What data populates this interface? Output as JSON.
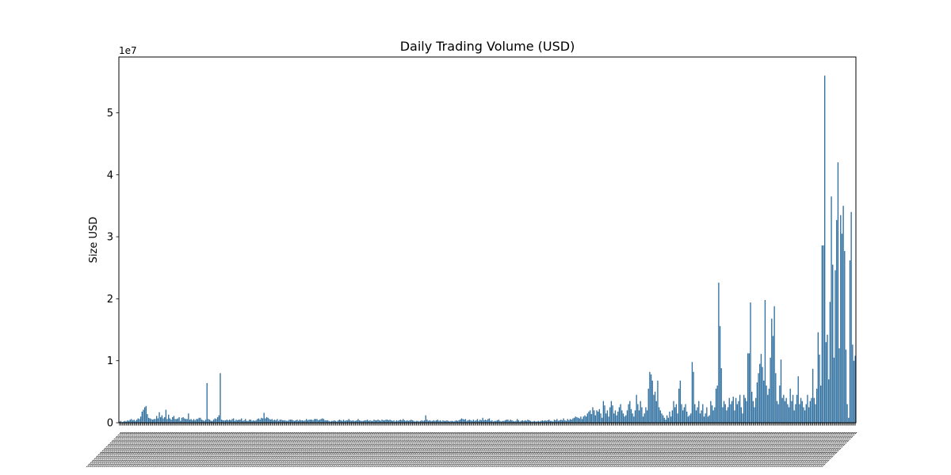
{
  "chart_data": {
    "type": "bar",
    "title": "Daily Trading Volume (USD)",
    "xlabel": "",
    "ylabel": "Size USD",
    "offset_label": "1e7",
    "ylim": [
      0,
      5.9
    ],
    "yticks": [
      0,
      1,
      2,
      3,
      4,
      5
    ],
    "ytick_labels": [
      "0",
      "1",
      "2",
      "3",
      "4",
      "5"
    ],
    "bar_color": "#2f6f9f",
    "grid": false,
    "values_unit": "1e7 USD",
    "values": [
      0.02,
      0.03,
      0.01,
      0.02,
      0.03,
      0.02,
      0.04,
      0.03,
      0.05,
      0.06,
      0.04,
      0.05,
      0.03,
      0.05,
      0.07,
      0.06,
      0.1,
      0.18,
      0.21,
      0.25,
      0.27,
      0.14,
      0.08,
      0.07,
      0.06,
      0.05,
      0.06,
      0.06,
      0.11,
      0.07,
      0.17,
      0.09,
      0.12,
      0.07,
      0.09,
      0.21,
      0.06,
      0.13,
      0.07,
      0.05,
      0.09,
      0.11,
      0.06,
      0.06,
      0.07,
      0.09,
      0.03,
      0.08,
      0.09,
      0.07,
      0.06,
      0.06,
      0.15,
      0.05,
      0.06,
      0.04,
      0.06,
      0.04,
      0.06,
      0.06,
      0.08,
      0.08,
      0.05,
      0.04,
      0.03,
      0.05,
      0.64,
      0.06,
      0.05,
      0.03,
      0.03,
      0.05,
      0.07,
      0.06,
      0.09,
      0.12,
      0.8,
      0.05,
      0.04,
      0.04,
      0.04,
      0.05,
      0.04,
      0.05,
      0.04,
      0.06,
      0.07,
      0.03,
      0.05,
      0.04,
      0.05,
      0.05,
      0.07,
      0.03,
      0.04,
      0.06,
      0.03,
      0.03,
      0.05,
      0.05,
      0.03,
      0.04,
      0.03,
      0.04,
      0.06,
      0.07,
      0.05,
      0.08,
      0.07,
      0.16,
      0.07,
      0.09,
      0.08,
      0.06,
      0.05,
      0.06,
      0.04,
      0.05,
      0.04,
      0.06,
      0.03,
      0.05,
      0.05,
      0.04,
      0.04,
      0.04,
      0.03,
      0.03,
      0.05,
      0.05,
      0.05,
      0.04,
      0.03,
      0.04,
      0.05,
      0.03,
      0.05,
      0.04,
      0.04,
      0.03,
      0.04,
      0.06,
      0.04,
      0.05,
      0.05,
      0.05,
      0.04,
      0.06,
      0.06,
      0.06,
      0.04,
      0.05,
      0.06,
      0.07,
      0.06,
      0.04,
      0.04,
      0.04,
      0.03,
      0.02,
      0.03,
      0.03,
      0.04,
      0.03,
      0.02,
      0.04,
      0.05,
      0.04,
      0.03,
      0.05,
      0.03,
      0.04,
      0.04,
      0.06,
      0.04,
      0.03,
      0.04,
      0.03,
      0.03,
      0.04,
      0.06,
      0.04,
      0.03,
      0.03,
      0.03,
      0.04,
      0.04,
      0.05,
      0.03,
      0.04,
      0.03,
      0.03,
      0.05,
      0.04,
      0.04,
      0.05,
      0.04,
      0.03,
      0.05,
      0.04,
      0.04,
      0.05,
      0.05,
      0.04,
      0.05,
      0.04,
      0.03,
      0.04,
      0.02,
      0.04,
      0.03,
      0.04,
      0.05,
      0.04,
      0.06,
      0.04,
      0.03,
      0.04,
      0.03,
      0.04,
      0.05,
      0.04,
      0.03,
      0.02,
      0.03,
      0.03,
      0.02,
      0.03,
      0.04,
      0.03,
      0.04,
      0.12,
      0.05,
      0.03,
      0.04,
      0.03,
      0.03,
      0.04,
      0.03,
      0.04,
      0.05,
      0.03,
      0.04,
      0.02,
      0.04,
      0.03,
      0.03,
      0.04,
      0.03,
      0.02,
      0.03,
      0.03,
      0.02,
      0.03,
      0.04,
      0.03,
      0.04,
      0.05,
      0.07,
      0.06,
      0.05,
      0.06,
      0.03,
      0.04,
      0.05,
      0.04,
      0.03,
      0.05,
      0.03,
      0.04,
      0.06,
      0.03,
      0.05,
      0.04,
      0.08,
      0.04,
      0.05,
      0.04,
      0.06,
      0.07,
      0.03,
      0.04,
      0.02,
      0.03,
      0.03,
      0.04,
      0.05,
      0.03,
      0.02,
      0.03,
      0.03,
      0.04,
      0.05,
      0.05,
      0.03,
      0.05,
      0.04,
      0.03,
      0.02,
      0.03,
      0.06,
      0.04,
      0.02,
      0.03,
      0.04,
      0.03,
      0.04,
      0.03,
      0.05,
      0.04,
      0.03,
      0.02,
      0.02,
      0.03,
      0.02,
      0.02,
      0.03,
      0.02,
      0.03,
      0.04,
      0.03,
      0.04,
      0.03,
      0.04,
      0.05,
      0.03,
      0.03,
      0.02,
      0.05,
      0.04,
      0.06,
      0.03,
      0.04,
      0.05,
      0.04,
      0.07,
      0.04,
      0.03,
      0.06,
      0.04,
      0.06,
      0.05,
      0.07,
      0.08,
      0.1,
      0.09,
      0.08,
      0.07,
      0.1,
      0.06,
      0.1,
      0.12,
      0.1,
      0.15,
      0.18,
      0.2,
      0.14,
      0.25,
      0.2,
      0.12,
      0.2,
      0.18,
      0.22,
      0.15,
      0.08,
      0.35,
      0.28,
      0.15,
      0.2,
      0.1,
      0.25,
      0.35,
      0.28,
      0.15,
      0.2,
      0.12,
      0.18,
      0.25,
      0.3,
      0.2,
      0.15,
      0.1,
      0.12,
      0.2,
      0.3,
      0.35,
      0.22,
      0.15,
      0.1,
      0.2,
      0.45,
      0.3,
      0.2,
      0.35,
      0.25,
      0.1,
      0.15,
      0.25,
      0.2,
      0.55,
      0.82,
      0.78,
      0.68,
      0.45,
      0.5,
      0.35,
      0.68,
      0.25,
      0.2,
      0.15,
      0.12,
      0.08,
      0.05,
      0.12,
      0.08,
      0.18,
      0.1,
      0.2,
      0.35,
      0.25,
      0.3,
      0.15,
      0.55,
      0.68,
      0.3,
      0.2,
      0.25,
      0.3,
      0.18,
      0.1,
      0.12,
      0.15,
      0.98,
      0.82,
      0.3,
      0.2,
      0.25,
      0.35,
      0.15,
      0.2,
      0.3,
      0.1,
      0.15,
      0.25,
      0.1,
      0.12,
      0.35,
      0.28,
      0.2,
      0.25,
      0.55,
      0.6,
      2.26,
      1.56,
      0.88,
      0.25,
      0.35,
      0.3,
      0.2,
      0.25,
      0.4,
      0.3,
      0.35,
      0.42,
      0.2,
      0.4,
      0.3,
      0.35,
      0.45,
      0.25,
      0.15,
      0.45,
      0.4,
      0.35,
      1.12,
      1.12,
      1.94,
      0.5,
      0.35,
      0.25,
      0.4,
      0.65,
      0.8,
      0.95,
      1.11,
      0.9,
      0.68,
      1.98,
      0.6,
      0.45,
      0.55,
      1.05,
      1.68,
      1.4,
      1.88,
      0.8,
      0.35,
      0.3,
      0.6,
      1.02,
      0.4,
      0.45,
      0.35,
      0.4,
      0.3,
      0.25,
      0.55,
      0.35,
      0.45,
      0.2,
      0.3,
      0.45,
      0.75,
      0.3,
      0.4,
      0.35,
      0.25,
      0.2,
      0.3,
      0.45,
      0.25,
      0.35,
      0.4,
      0.87,
      0.4,
      0.3,
      0.55,
      1.46,
      1.1,
      0.6,
      2.86,
      2.86,
      5.6,
      1.3,
      1.42,
      0.7,
      1.95,
      3.65,
      2.55,
      1.05,
      2.46,
      3.27,
      4.2,
      1.2,
      3.35,
      3.05,
      3.5,
      2.77,
      1.18,
      0.3,
      0.08,
      2.62,
      3.4,
      1.26,
      1.0,
      1.08
    ]
  }
}
